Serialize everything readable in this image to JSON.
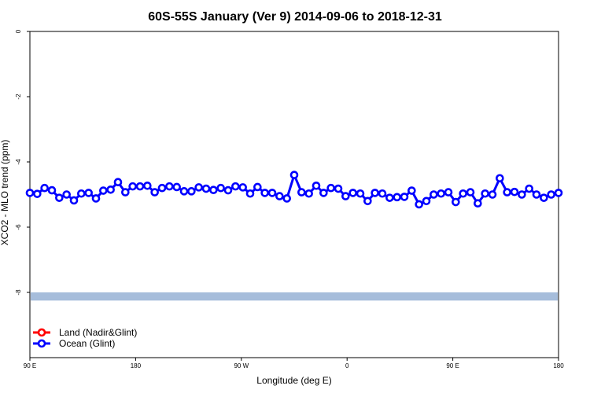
{
  "chart_data": {
    "type": "line",
    "title": "60S-55S January (Ver 9)   2014-09-06 to 2018-12-31",
    "xlabel": "Longitude (deg E)",
    "ylabel": "XCO2 - MLO trend (ppm)",
    "xlim": [
      90,
      450
    ],
    "ylim": [
      -10,
      0
    ],
    "x_ticks": [
      {
        "value": 90,
        "label": "90 E"
      },
      {
        "value": 162,
        "label": "180"
      },
      {
        "value": 234,
        "label": "90 W"
      },
      {
        "value": 306,
        "label": "0"
      },
      {
        "value": 378,
        "label": "90 E"
      },
      {
        "value": 450,
        "label": "180"
      }
    ],
    "y_ticks": [
      {
        "value": 0,
        "label": "0"
      },
      {
        "value": -2,
        "label": "-2"
      },
      {
        "value": -4,
        "label": "-4"
      },
      {
        "value": -6,
        "label": "-6"
      },
      {
        "value": -8,
        "label": "-8"
      }
    ],
    "series": [
      {
        "name": "Land (Nadir&Glint)",
        "color": "#ff0000",
        "x": [],
        "y": []
      },
      {
        "name": "Ocean (Glint)",
        "color": "#0000ff",
        "x": [
          90,
          95,
          100,
          105,
          110,
          115,
          120,
          125,
          130,
          135,
          140,
          145,
          150,
          155,
          160,
          165,
          170,
          175,
          180,
          185,
          190,
          195,
          200,
          205,
          210,
          215,
          220,
          225,
          230,
          235,
          240,
          245,
          250,
          255,
          260,
          265,
          270,
          275,
          280,
          285,
          290,
          295,
          300,
          305,
          310,
          315,
          320,
          325,
          330,
          335,
          340,
          345,
          350,
          355,
          360,
          365,
          370,
          375,
          380,
          385,
          390,
          395,
          400,
          405,
          410,
          415,
          420,
          425,
          430,
          435,
          440,
          445,
          450
        ],
        "y": [
          -4.95,
          -4.98,
          -4.8,
          -4.87,
          -5.1,
          -5.0,
          -5.18,
          -4.97,
          -4.95,
          -5.12,
          -4.88,
          -4.85,
          -4.62,
          -4.93,
          -4.75,
          -4.75,
          -4.73,
          -4.93,
          -4.8,
          -4.75,
          -4.77,
          -4.9,
          -4.9,
          -4.78,
          -4.82,
          -4.86,
          -4.8,
          -4.87,
          -4.75,
          -4.78,
          -4.97,
          -4.77,
          -4.95,
          -4.95,
          -5.05,
          -5.12,
          -4.4,
          -4.93,
          -4.97,
          -4.73,
          -4.95,
          -4.8,
          -4.82,
          -5.05,
          -4.95,
          -4.97,
          -5.2,
          -4.95,
          -4.97,
          -5.1,
          -5.08,
          -5.07,
          -4.88,
          -5.3,
          -5.2,
          -5.0,
          -4.97,
          -4.93,
          -5.23,
          -4.97,
          -4.93,
          -5.27,
          -4.97,
          -5.0,
          -4.5,
          -4.93,
          -4.92,
          -5.0,
          -4.82,
          -5.0,
          -5.1,
          -5.0,
          -4.95
        ]
      }
    ],
    "band": {
      "y_from": -8.25,
      "y_to": -8.0,
      "color": "#a6bddb"
    },
    "legend_position": "bottom-left"
  }
}
